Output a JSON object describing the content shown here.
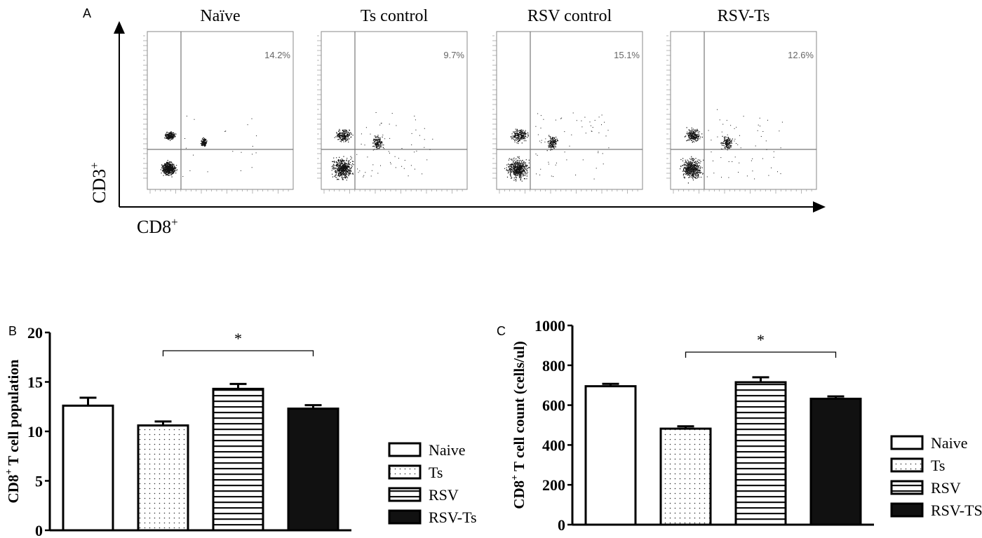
{
  "panel_labels": {
    "a": "A",
    "b": "B",
    "c": "C"
  },
  "flow": {
    "y_axis_label": "CD3",
    "x_axis_label": "CD8",
    "superscript": "+",
    "panels": [
      {
        "title": "Naïve",
        "percent": "14.2%"
      },
      {
        "title": "Ts control",
        "percent": "9.7%"
      },
      {
        "title": "RSV control",
        "percent": "15.1%"
      },
      {
        "title": "RSV-Ts",
        "percent": "12.6%"
      }
    ]
  },
  "chart_data": [
    {
      "type": "bar",
      "panel": "B",
      "categories": [
        "Naive",
        "Ts",
        "RSV",
        "RSV-Ts"
      ],
      "values": [
        12.6,
        10.6,
        14.3,
        12.3
      ],
      "error": [
        0.8,
        0.4,
        0.5,
        0.35
      ],
      "ylabel_main": "CD8",
      "ylabel_sup": "+",
      "ylabel_rest": "  T cell population",
      "ylim": [
        0,
        20
      ],
      "yticks": [
        0,
        5,
        10,
        15,
        20
      ],
      "significance": {
        "from": "Ts",
        "to": "RSV-Ts",
        "label": "*"
      },
      "legend": [
        "Naive",
        "Ts",
        "RSV",
        "RSV-Ts"
      ],
      "legend_placement": "right",
      "fills": [
        "white",
        "dotted",
        "horizontal-stripes",
        "#111111"
      ]
    },
    {
      "type": "bar",
      "panel": "C",
      "categories": [
        "Naive",
        "Ts",
        "RSV",
        "RSV-TS"
      ],
      "values": [
        695,
        482,
        715,
        632
      ],
      "error": [
        12,
        12,
        25,
        12
      ],
      "ylabel_main": "CD8",
      "ylabel_sup": "+",
      "ylabel_rest": " T cell count  (cells/ul)",
      "ylim": [
        0,
        1000
      ],
      "yticks": [
        0,
        200,
        400,
        600,
        800,
        1000
      ],
      "significance": {
        "from": "Ts",
        "to": "RSV-TS",
        "label": "*"
      },
      "legend": [
        "Naive",
        "Ts",
        "RSV",
        "RSV-TS"
      ],
      "legend_placement": "right",
      "fills": [
        "white",
        "dotted",
        "horizontal-stripes",
        "#111111"
      ]
    }
  ]
}
